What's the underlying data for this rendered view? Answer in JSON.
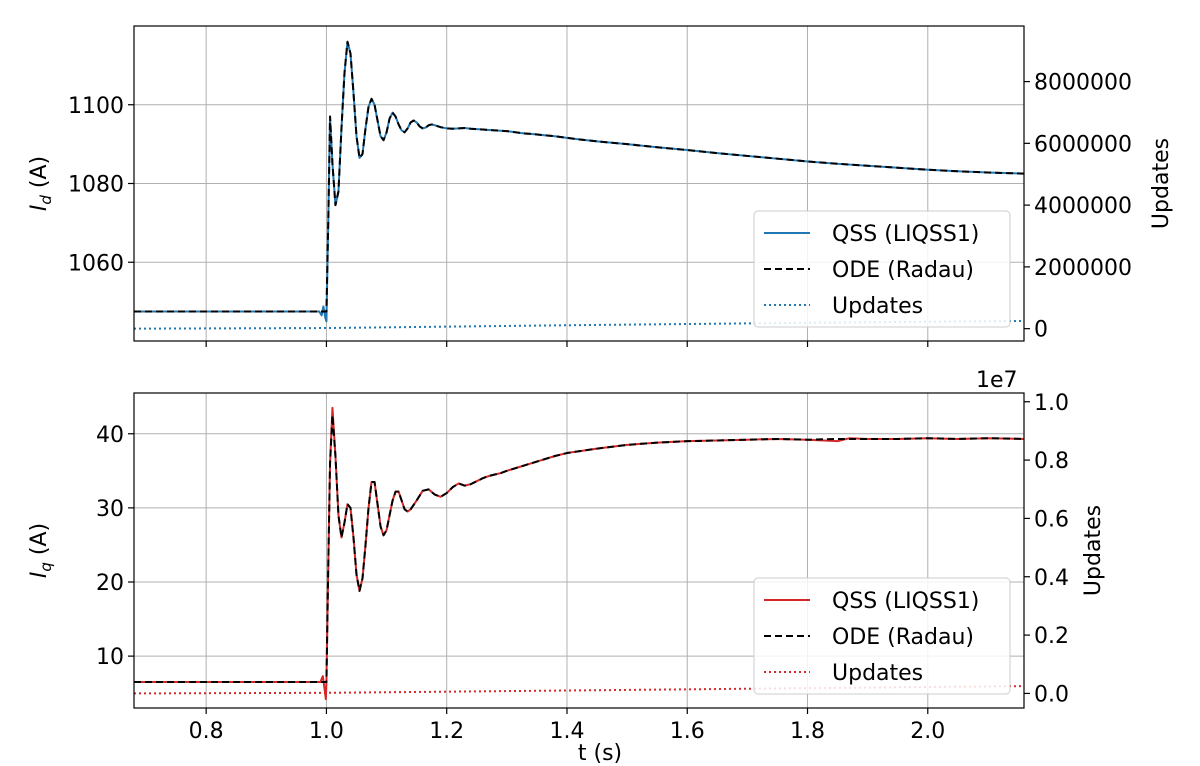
{
  "figure": {
    "shared_xlabel": "t (s)"
  },
  "chart_data": [
    {
      "type": "line",
      "xlabel": "t (s)",
      "ylabel": "I_d (A)",
      "ylabel_main": "I",
      "ylabel_sub": "d",
      "ylabel_tail": " (A)",
      "y2label": "Updates",
      "xlim": [
        0.68,
        2.16
      ],
      "ylim": [
        1040,
        1120
      ],
      "y2lim": [
        -400000,
        9800000
      ],
      "xticks": [
        0.8,
        1.0,
        1.2,
        1.4,
        1.6,
        1.8,
        2.0
      ],
      "xtick_labels": [
        "0.8",
        "1.0",
        "1.2",
        "1.4",
        "1.6",
        "1.8",
        "2.0"
      ],
      "show_xtick_labels": false,
      "yticks": [
        1060,
        1080,
        1100
      ],
      "ytick_labels": [
        "1060",
        "1080",
        "1100"
      ],
      "y2ticks": [
        0,
        2000000,
        4000000,
        6000000,
        8000000
      ],
      "y2tick_labels": [
        "0",
        "2000000",
        "4000000",
        "6000000",
        "8000000"
      ],
      "y2_offset_label": "",
      "grid": true,
      "legend_placement": "lower-right",
      "legend": [
        {
          "label": "QSS (LIQSS1)",
          "color": "#1f77b4",
          "style": "solid"
        },
        {
          "label": "ODE (Radau)",
          "color": "#000000",
          "style": "dashed"
        },
        {
          "label": "Updates",
          "color": "#1f77b4",
          "style": "dotted"
        }
      ],
      "series": [
        {
          "name": "QSS (LIQSS1)",
          "axis": "left",
          "color": "#1f77b4",
          "style": "solid",
          "x": [
            0.68,
            0.98,
            0.988,
            0.992,
            0.995,
            0.998,
            1.0,
            1.003,
            1.006,
            1.01,
            1.015,
            1.02,
            1.025,
            1.03,
            1.035,
            1.04,
            1.045,
            1.05,
            1.055,
            1.06,
            1.065,
            1.07,
            1.075,
            1.08,
            1.085,
            1.09,
            1.095,
            1.1,
            1.105,
            1.11,
            1.115,
            1.12,
            1.125,
            1.13,
            1.135,
            1.14,
            1.145,
            1.15,
            1.155,
            1.16,
            1.165,
            1.17,
            1.175,
            1.18,
            1.19,
            1.2,
            1.21,
            1.22,
            1.23,
            1.24,
            1.25,
            1.26,
            1.27,
            1.28,
            1.29,
            1.3,
            1.31,
            1.32,
            1.33,
            1.34,
            1.36,
            1.38,
            1.4,
            1.42,
            1.45,
            1.5,
            1.55,
            1.6,
            1.65,
            1.7,
            1.75,
            1.8,
            1.85,
            1.9,
            1.95,
            2.0,
            2.05,
            2.1,
            2.16
          ],
          "y": [
            1047.5,
            1047.5,
            1047.5,
            1046.5,
            1048.8,
            1046.0,
            1045.0,
            1070.0,
            1097.0,
            1085.0,
            1074.5,
            1078.0,
            1094.0,
            1108.0,
            1116.0,
            1113.0,
            1103.0,
            1092.0,
            1086.5,
            1087.5,
            1094.0,
            1099.5,
            1101.5,
            1100.0,
            1096.0,
            1092.0,
            1091.0,
            1093.0,
            1096.5,
            1098.0,
            1097.0,
            1095.0,
            1093.5,
            1093.0,
            1094.0,
            1095.5,
            1096.0,
            1095.5,
            1094.5,
            1094.0,
            1094.2,
            1094.8,
            1095.0,
            1094.8,
            1094.3,
            1094.0,
            1093.9,
            1094.0,
            1094.1,
            1093.9,
            1093.8,
            1093.7,
            1093.6,
            1093.5,
            1093.4,
            1093.3,
            1093.1,
            1092.9,
            1092.7,
            1092.6,
            1092.3,
            1092.0,
            1091.6,
            1091.2,
            1090.7,
            1090.0,
            1089.2,
            1088.5,
            1087.7,
            1087.0,
            1086.3,
            1085.6,
            1085.0,
            1084.5,
            1084.0,
            1083.5,
            1083.1,
            1082.8,
            1082.5
          ]
        },
        {
          "name": "ODE (Radau)",
          "axis": "left",
          "color": "#000000",
          "style": "dashed",
          "x": [
            0.68,
            0.995,
            1.0,
            1.003,
            1.006,
            1.01,
            1.015,
            1.02,
            1.025,
            1.03,
            1.035,
            1.04,
            1.045,
            1.05,
            1.055,
            1.06,
            1.065,
            1.07,
            1.075,
            1.08,
            1.085,
            1.09,
            1.095,
            1.1,
            1.105,
            1.11,
            1.115,
            1.12,
            1.125,
            1.13,
            1.135,
            1.14,
            1.145,
            1.15,
            1.155,
            1.16,
            1.165,
            1.17,
            1.175,
            1.18,
            1.19,
            1.2,
            1.21,
            1.22,
            1.23,
            1.24,
            1.25,
            1.26,
            1.27,
            1.28,
            1.29,
            1.3,
            1.31,
            1.32,
            1.33,
            1.34,
            1.36,
            1.38,
            1.4,
            1.42,
            1.45,
            1.5,
            1.55,
            1.6,
            1.65,
            1.7,
            1.75,
            1.8,
            1.85,
            1.9,
            1.95,
            2.0,
            2.05,
            2.1,
            2.16
          ],
          "y": [
            1047.5,
            1047.5,
            1047.5,
            1070.0,
            1097.0,
            1085.0,
            1074.5,
            1078.0,
            1094.0,
            1108.0,
            1116.0,
            1113.0,
            1103.0,
            1092.0,
            1086.5,
            1087.5,
            1094.0,
            1099.5,
            1101.5,
            1100.0,
            1096.0,
            1092.0,
            1091.0,
            1093.0,
            1096.5,
            1098.0,
            1097.0,
            1095.0,
            1093.5,
            1093.0,
            1094.0,
            1095.5,
            1096.0,
            1095.5,
            1094.5,
            1094.0,
            1094.2,
            1094.8,
            1095.0,
            1094.8,
            1094.3,
            1094.0,
            1093.9,
            1094.0,
            1094.1,
            1093.9,
            1093.8,
            1093.7,
            1093.6,
            1093.5,
            1093.4,
            1093.3,
            1093.1,
            1092.9,
            1092.7,
            1092.6,
            1092.3,
            1092.0,
            1091.6,
            1091.2,
            1090.7,
            1090.0,
            1089.2,
            1088.5,
            1087.7,
            1087.0,
            1086.3,
            1085.6,
            1085.0,
            1084.5,
            1084.0,
            1083.5,
            1083.1,
            1082.8,
            1082.5
          ]
        },
        {
          "name": "Updates",
          "axis": "right",
          "color": "#1f77b4",
          "style": "dotted",
          "x": [
            0.68,
            1.0,
            1.2,
            1.4,
            1.6,
            1.8,
            2.0,
            2.16
          ],
          "y": [
            0,
            20000,
            65000,
            110000,
            150000,
            190000,
            225000,
            250000
          ]
        }
      ]
    },
    {
      "type": "line",
      "xlabel": "t (s)",
      "ylabel": "I_q (A)",
      "ylabel_main": "I",
      "ylabel_sub": "q",
      "ylabel_tail": " (A)",
      "y2label": "Updates",
      "xlim": [
        0.68,
        2.16
      ],
      "ylim": [
        3,
        45.5
      ],
      "y2lim": [
        -500000,
        10300000
      ],
      "xticks": [
        0.8,
        1.0,
        1.2,
        1.4,
        1.6,
        1.8,
        2.0
      ],
      "xtick_labels": [
        "0.8",
        "1.0",
        "1.2",
        "1.4",
        "1.6",
        "1.8",
        "2.0"
      ],
      "show_xtick_labels": true,
      "yticks": [
        10,
        20,
        30,
        40
      ],
      "ytick_labels": [
        "10",
        "20",
        "30",
        "40"
      ],
      "y2ticks": [
        0,
        2000000,
        4000000,
        6000000,
        8000000,
        10000000
      ],
      "y2tick_labels": [
        "0.0",
        "0.2",
        "0.4",
        "0.6",
        "0.8",
        "1.0"
      ],
      "y2_offset_label": "1e7",
      "grid": true,
      "legend_placement": "lower-right",
      "legend": [
        {
          "label": "QSS (LIQSS1)",
          "color": "#d62728",
          "style": "solid"
        },
        {
          "label": "ODE (Radau)",
          "color": "#000000",
          "style": "dashed"
        },
        {
          "label": "Updates",
          "color": "#d62728",
          "style": "dotted"
        }
      ],
      "series": [
        {
          "name": "QSS (LIQSS1)",
          "axis": "left",
          "color": "#d62728",
          "style": "solid",
          "x": [
            0.68,
            0.985,
            0.99,
            0.994,
            0.997,
            0.999,
            1.0,
            1.003,
            1.006,
            1.01,
            1.015,
            1.02,
            1.025,
            1.03,
            1.035,
            1.04,
            1.045,
            1.05,
            1.055,
            1.06,
            1.065,
            1.07,
            1.075,
            1.08,
            1.085,
            1.09,
            1.095,
            1.1,
            1.105,
            1.11,
            1.115,
            1.12,
            1.125,
            1.13,
            1.135,
            1.14,
            1.15,
            1.16,
            1.17,
            1.18,
            1.19,
            1.2,
            1.21,
            1.22,
            1.23,
            1.24,
            1.25,
            1.26,
            1.27,
            1.28,
            1.29,
            1.3,
            1.32,
            1.34,
            1.36,
            1.38,
            1.4,
            1.45,
            1.5,
            1.55,
            1.6,
            1.65,
            1.7,
            1.75,
            1.8,
            1.85,
            1.87,
            1.9,
            1.95,
            2.0,
            2.05,
            2.1,
            2.16
          ],
          "y": [
            6.5,
            6.5,
            6.5,
            7.3,
            5.5,
            4.2,
            6.5,
            22.0,
            36.0,
            43.5,
            37.0,
            29.0,
            26.0,
            28.0,
            30.5,
            30.0,
            26.0,
            21.0,
            18.8,
            20.5,
            25.0,
            30.0,
            33.5,
            33.5,
            30.5,
            27.5,
            26.3,
            27.0,
            29.0,
            31.0,
            32.2,
            32.2,
            31.0,
            29.8,
            29.5,
            29.8,
            31.0,
            32.3,
            32.5,
            31.8,
            31.5,
            32.0,
            32.8,
            33.3,
            33.0,
            33.2,
            33.6,
            34.0,
            34.3,
            34.5,
            34.7,
            35.0,
            35.5,
            36.0,
            36.5,
            37.0,
            37.4,
            38.0,
            38.5,
            38.8,
            39.0,
            39.1,
            39.2,
            39.3,
            39.2,
            39.0,
            39.4,
            39.3,
            39.3,
            39.4,
            39.3,
            39.4,
            39.3
          ]
        },
        {
          "name": "ODE (Radau)",
          "axis": "left",
          "color": "#000000",
          "style": "dashed",
          "x": [
            0.68,
            0.998,
            1.0,
            1.003,
            1.006,
            1.01,
            1.015,
            1.02,
            1.025,
            1.03,
            1.035,
            1.04,
            1.045,
            1.05,
            1.055,
            1.06,
            1.065,
            1.07,
            1.075,
            1.08,
            1.085,
            1.09,
            1.095,
            1.1,
            1.105,
            1.11,
            1.115,
            1.12,
            1.125,
            1.13,
            1.135,
            1.14,
            1.15,
            1.16,
            1.17,
            1.18,
            1.19,
            1.2,
            1.21,
            1.22,
            1.23,
            1.24,
            1.25,
            1.26,
            1.27,
            1.28,
            1.29,
            1.3,
            1.32,
            1.34,
            1.36,
            1.38,
            1.4,
            1.45,
            1.5,
            1.55,
            1.6,
            1.65,
            1.7,
            1.75,
            1.8,
            1.85,
            1.9,
            1.95,
            2.0,
            2.05,
            2.1,
            2.16
          ],
          "y": [
            6.5,
            6.5,
            6.5,
            22.0,
            36.0,
            42.5,
            37.0,
            29.0,
            26.0,
            28.0,
            30.5,
            30.0,
            26.0,
            21.0,
            18.8,
            20.5,
            25.0,
            30.0,
            33.5,
            33.5,
            30.5,
            27.5,
            26.3,
            27.0,
            29.0,
            31.0,
            32.2,
            32.2,
            31.0,
            29.8,
            29.5,
            29.8,
            31.0,
            32.3,
            32.5,
            31.8,
            31.5,
            32.0,
            32.8,
            33.3,
            33.0,
            33.2,
            33.6,
            34.0,
            34.3,
            34.5,
            34.7,
            35.0,
            35.5,
            36.0,
            36.5,
            37.0,
            37.4,
            38.0,
            38.5,
            38.8,
            39.0,
            39.1,
            39.2,
            39.3,
            39.2,
            39.3,
            39.3,
            39.3,
            39.4,
            39.3,
            39.4,
            39.3
          ]
        },
        {
          "name": "Updates",
          "axis": "right",
          "color": "#d62728",
          "style": "dotted",
          "x": [
            0.68,
            1.0,
            1.2,
            1.4,
            1.6,
            1.8,
            2.0,
            2.16
          ],
          "y": [
            0,
            20000,
            60000,
            100000,
            140000,
            180000,
            220000,
            250000
          ]
        }
      ]
    }
  ]
}
